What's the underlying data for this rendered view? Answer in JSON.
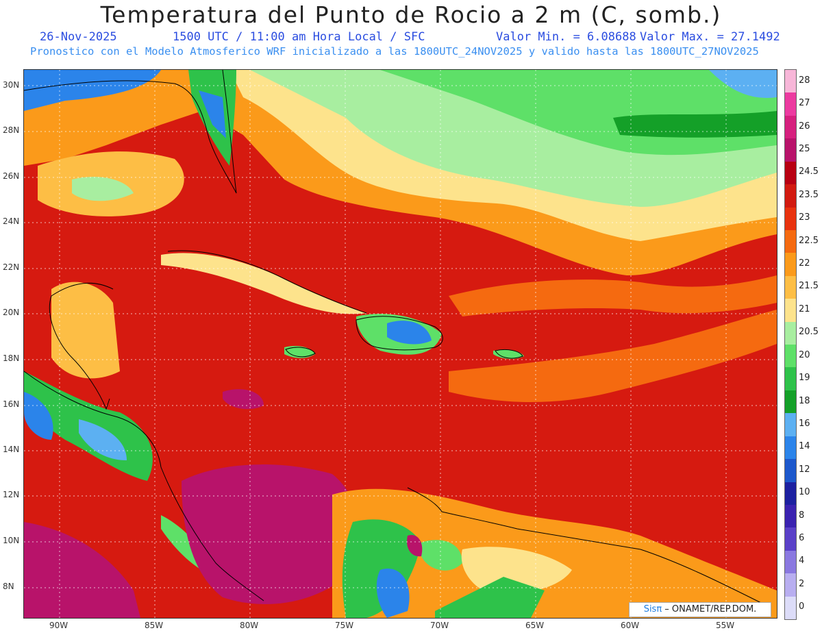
{
  "header": {
    "title": "Temperatura del Punto de Rocio a 2 m (C, somb.)",
    "date": "26-Nov-2025",
    "time": "1500 UTC / 11:00 am Hora Local / SFC",
    "valmin": "Valor Min. = 6.08688",
    "valmax": "Valor Max. = 27.1492",
    "forecast": "Pronostico con el Modelo Atmosferico WRF inicializado a las 1800UTC_24NOV2025 y valido hasta las  1800UTC_27NOV2025"
  },
  "lat_labels": [
    "30N",
    "28N",
    "26N",
    "24N",
    "22N",
    "20N",
    "18N",
    "16N",
    "14N",
    "12N",
    "10N",
    "8N"
  ],
  "lon_labels": [
    "90W",
    "85W",
    "80W",
    "75W",
    "70W",
    "65W",
    "60W",
    "55W"
  ],
  "colorbar": {
    "labels": [
      "28",
      "27",
      "26",
      "25",
      "24.5",
      "23.5",
      "23",
      "22.5",
      "22",
      "21.5",
      "21",
      "20.5",
      "20",
      "19",
      "18",
      "16",
      "14",
      "12",
      "10",
      "8",
      "6",
      "4",
      "2",
      "0"
    ],
    "colors": [
      "#f7b6d8",
      "#ec3aa0",
      "#d6207e",
      "#b8136a",
      "#b80012",
      "#d21a10",
      "#e8320e",
      "#f56a10",
      "#fb9a1a",
      "#fdbe45",
      "#fde38c",
      "#a8eea0",
      "#5ee068",
      "#2ec24a",
      "#14a028",
      "#5cb0f2",
      "#2b84ea",
      "#1c58cc",
      "#1c20a0",
      "#3a22b0",
      "#5a40c8",
      "#8a78e0",
      "#b8aef0",
      "#dcdcf8"
    ]
  },
  "credit": {
    "brand": "Sisπ",
    "text": " – ONAMET/REP.DOM."
  }
}
